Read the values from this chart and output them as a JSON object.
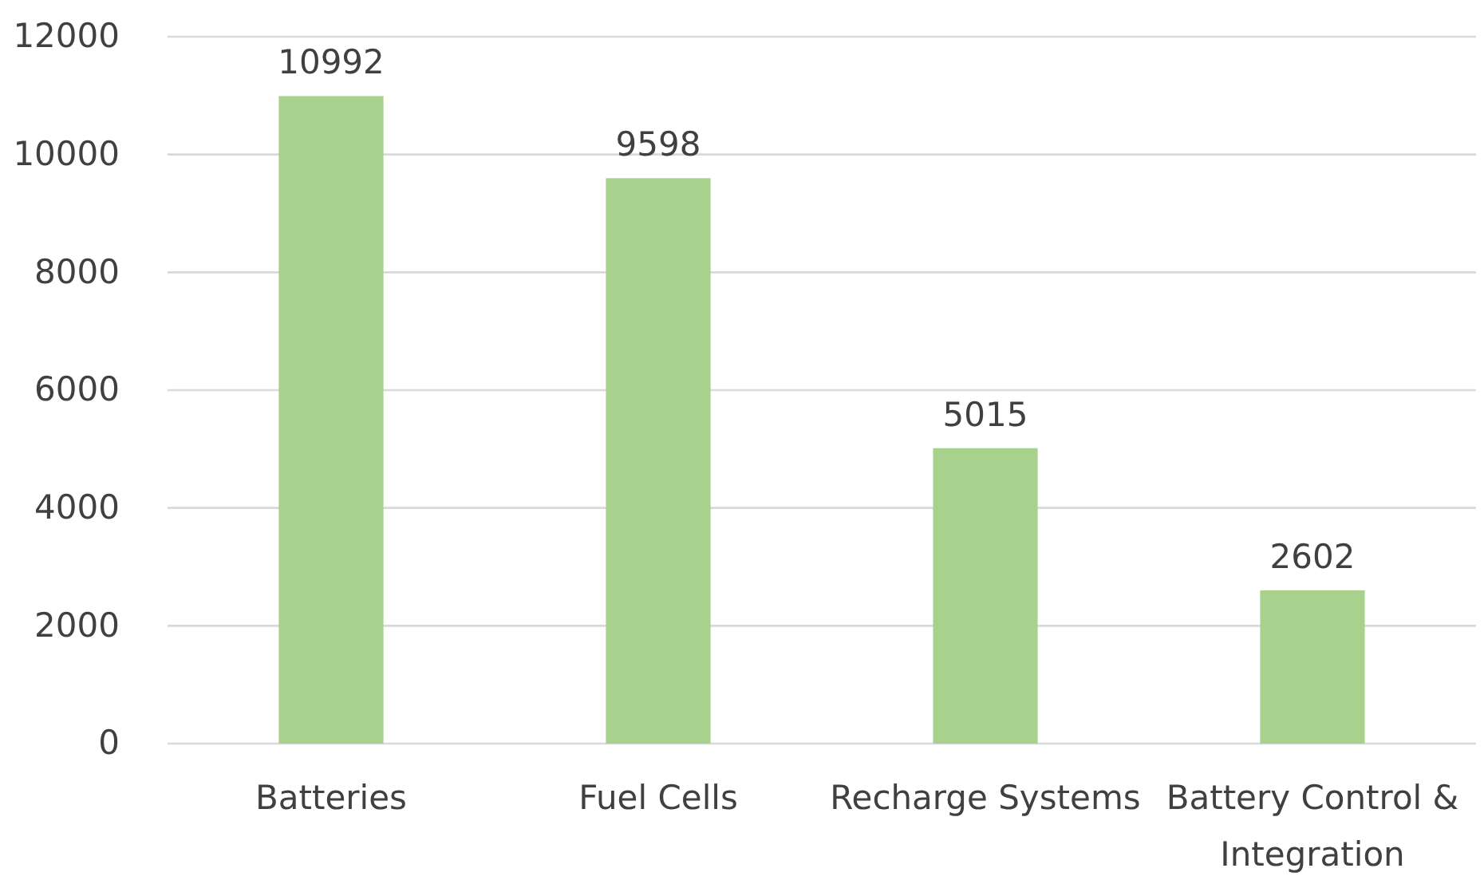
{
  "chart_data": {
    "type": "bar",
    "categories": [
      "Batteries",
      "Fuel Cells",
      "Recharge Systems",
      "Battery Control & Integration"
    ],
    "values": [
      10992,
      9598,
      5015,
      2602
    ],
    "color": "#a9d18e",
    "ylim": [
      0,
      12000
    ],
    "yticks": [
      0,
      2000,
      4000,
      6000,
      8000,
      10000,
      12000
    ],
    "grid": "y",
    "data_labels": true
  }
}
